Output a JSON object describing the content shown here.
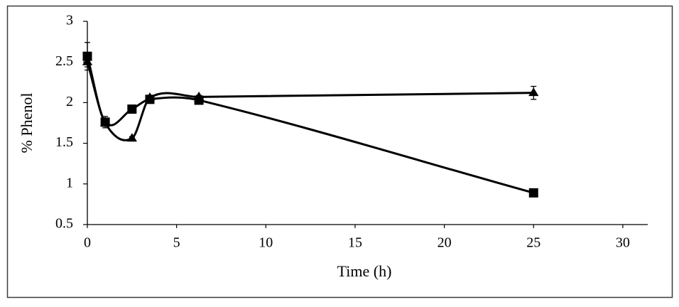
{
  "chart_data": {
    "type": "line",
    "xlabel": "Time (h)",
    "ylabel": "% Phenol",
    "xlim": [
      0,
      30
    ],
    "ylim": [
      0.5,
      3
    ],
    "xticks": [
      0,
      5,
      10,
      15,
      20,
      25,
      30
    ],
    "xtick_labels": [
      "0",
      "5",
      "10",
      "15",
      "20",
      "25",
      "30"
    ],
    "yticks": [
      0.5,
      1,
      1.5,
      2,
      2.5,
      3
    ],
    "ytick_labels": [
      "0.5",
      "1",
      "1.5",
      "2",
      "2.5",
      "3"
    ],
    "grid": false,
    "legend": "none",
    "series": [
      {
        "marker": "square",
        "color": "#000000",
        "smooth": true,
        "x": [
          0,
          1,
          2.5,
          3.5,
          6.25,
          25
        ],
        "y": [
          2.57,
          1.76,
          1.92,
          2.04,
          2.03,
          0.89
        ],
        "error": [
          0.17,
          0.07,
          0.02,
          0.02,
          0.02,
          0.02
        ]
      },
      {
        "marker": "triangle",
        "color": "#000000",
        "smooth": true,
        "x": [
          0,
          1,
          2.5,
          3.5,
          6.25,
          25
        ],
        "y": [
          2.5,
          1.75,
          1.56,
          2.06,
          2.07,
          2.12
        ],
        "error": [
          0.06,
          0.04,
          0.02,
          0.02,
          0.02,
          0.08
        ]
      }
    ]
  },
  "colors": {
    "axis": "#000000",
    "border": "#3a3a3a",
    "background": "#ffffff"
  }
}
